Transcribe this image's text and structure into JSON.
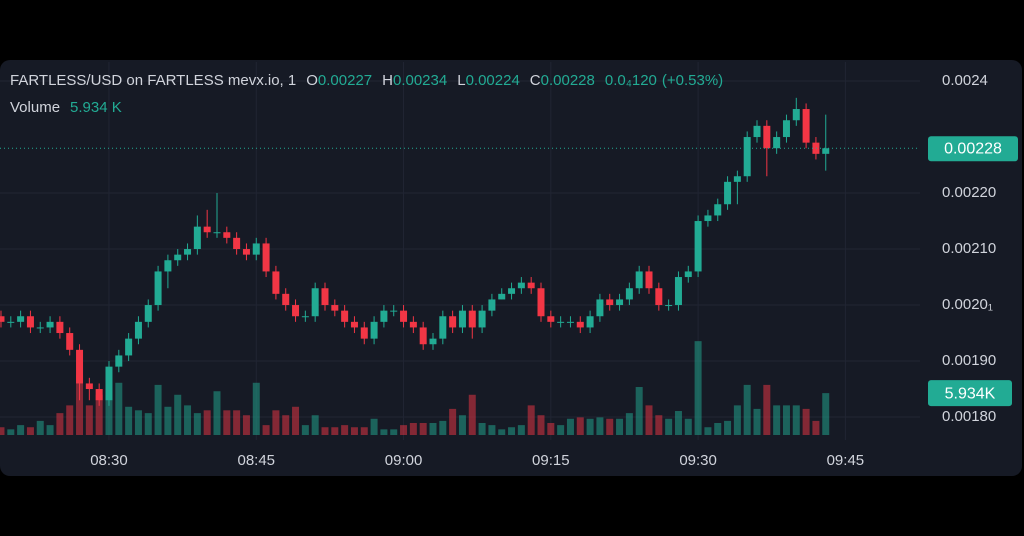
{
  "chart_data": {
    "type": "candlestick",
    "legend": {
      "symbol": "FARTLESS/USD on FARTLESS mevx.io, 1",
      "open_label": "O",
      "high_label": "H",
      "low_label": "L",
      "close_label": "C",
      "change": "0.0₄120",
      "change_pct": "(+0.53%)",
      "volume_label": "Volume",
      "volume_text": "5.934 K",
      "volume_badge": "5.934K"
    },
    "up_color": "#22ab94",
    "down_color": "#f23645",
    "x": [
      0,
      1,
      2,
      3,
      4,
      5,
      6,
      7,
      8,
      9,
      10,
      11,
      12,
      13,
      14,
      15,
      16,
      17,
      18,
      19,
      20,
      21,
      22,
      23,
      24,
      25,
      26,
      27,
      28,
      29,
      30,
      31,
      32,
      33,
      34,
      35,
      36,
      37,
      38,
      39,
      40,
      41,
      42,
      43,
      44,
      45,
      46,
      47,
      48,
      49,
      50,
      51,
      52,
      53,
      54,
      55,
      56,
      57,
      58,
      59,
      60,
      61,
      62,
      63,
      64,
      65,
      66,
      67,
      68,
      69,
      70,
      71,
      72,
      73,
      74,
      75,
      76,
      77,
      78,
      79,
      80,
      81,
      82,
      83,
      84
    ],
    "xlim": [
      -0.1,
      93.6
    ],
    "xticks": [
      {
        "value": 11,
        "label": "08:30"
      },
      {
        "value": 26,
        "label": "08:45"
      },
      {
        "value": 41,
        "label": "09:00"
      },
      {
        "value": 56,
        "label": "09:15"
      },
      {
        "value": 71,
        "label": "09:30"
      },
      {
        "value": 86,
        "label": "09:45"
      }
    ],
    "open": [
      0.00198,
      0.00197,
      0.00197,
      0.00198,
      0.00196,
      0.00196,
      0.00197,
      0.00195,
      0.00192,
      0.00186,
      0.00185,
      0.00183,
      0.00189,
      0.00191,
      0.00194,
      0.00197,
      0.002,
      0.00206,
      0.00208,
      0.00209,
      0.0021,
      0.00214,
      0.00213,
      0.00213,
      0.00212,
      0.0021,
      0.00209,
      0.00211,
      0.00206,
      0.00202,
      0.002,
      0.00198,
      0.00198,
      0.00203,
      0.002,
      0.00199,
      0.00197,
      0.00196,
      0.00194,
      0.00197,
      0.00199,
      0.00199,
      0.00197,
      0.00196,
      0.00193,
      0.00194,
      0.00198,
      0.00196,
      0.00199,
      0.00196,
      0.00199,
      0.00201,
      0.00202,
      0.00203,
      0.00204,
      0.00203,
      0.00198,
      0.00197,
      0.00197,
      0.00197,
      0.00196,
      0.00198,
      0.00201,
      0.002,
      0.00201,
      0.00203,
      0.00206,
      0.00203,
      0.002,
      0.002,
      0.00205,
      0.00206,
      0.00215,
      0.00216,
      0.00218,
      0.00222,
      0.00223,
      0.0023,
      0.00232,
      0.00228,
      0.0023,
      0.00233,
      0.00235,
      0.00229,
      0.00227
    ],
    "high": [
      0.00199,
      0.00198,
      0.00199,
      0.00199,
      0.00197,
      0.00198,
      0.00198,
      0.00196,
      0.00193,
      0.00187,
      0.00186,
      0.0019,
      0.00192,
      0.00195,
      0.00198,
      0.00201,
      0.00207,
      0.00209,
      0.0021,
      0.00211,
      0.00216,
      0.00217,
      0.0022,
      0.00214,
      0.00213,
      0.00211,
      0.00212,
      0.00212,
      0.00207,
      0.00203,
      0.00201,
      0.00199,
      0.00204,
      0.00204,
      0.00201,
      0.002,
      0.00198,
      0.00197,
      0.00198,
      0.002,
      0.002,
      0.002,
      0.00198,
      0.00197,
      0.00195,
      0.00199,
      0.00199,
      0.002,
      0.002,
      0.002,
      0.00202,
      0.00203,
      0.00204,
      0.00205,
      0.00205,
      0.00204,
      0.00199,
      0.00198,
      0.00198,
      0.00198,
      0.00199,
      0.00202,
      0.00202,
      0.00202,
      0.00204,
      0.00207,
      0.00207,
      0.00204,
      0.00201,
      0.00206,
      0.00207,
      0.00216,
      0.00217,
      0.00219,
      0.00223,
      0.00224,
      0.00231,
      0.00233,
      0.00233,
      0.00231,
      0.00234,
      0.00237,
      0.00236,
      0.0023,
      0.00234
    ],
    "low": [
      0.00196,
      0.00196,
      0.00196,
      0.00195,
      0.00195,
      0.00195,
      0.00194,
      0.00191,
      0.00183,
      0.00183,
      0.00182,
      0.00182,
      0.00188,
      0.0019,
      0.00193,
      0.00196,
      0.00199,
      0.00203,
      0.00207,
      0.00208,
      0.00209,
      0.00212,
      0.00212,
      0.00211,
      0.00209,
      0.00208,
      0.00208,
      0.00205,
      0.00201,
      0.00199,
      0.00197,
      0.00197,
      0.00197,
      0.00199,
      0.00198,
      0.00196,
      0.00195,
      0.00193,
      0.00193,
      0.00196,
      0.00198,
      0.00196,
      0.00195,
      0.00192,
      0.00192,
      0.00193,
      0.00195,
      0.00195,
      0.00194,
      0.00195,
      0.00198,
      0.00201,
      0.00201,
      0.00202,
      0.00202,
      0.00197,
      0.00196,
      0.00196,
      0.00196,
      0.00195,
      0.00195,
      0.00197,
      0.00199,
      0.00199,
      0.002,
      0.00202,
      0.00202,
      0.00199,
      0.00199,
      0.00199,
      0.00204,
      0.00205,
      0.00214,
      0.00215,
      0.00217,
      0.00218,
      0.00222,
      0.00229,
      0.00223,
      0.00227,
      0.00229,
      0.00232,
      0.00228,
      0.00226,
      0.00224
    ],
    "close": [
      0.00197,
      0.00197,
      0.00198,
      0.00196,
      0.00196,
      0.00197,
      0.00195,
      0.00192,
      0.00186,
      0.00185,
      0.00183,
      0.00189,
      0.00191,
      0.00194,
      0.00197,
      0.002,
      0.00206,
      0.00208,
      0.00209,
      0.0021,
      0.00214,
      0.00213,
      0.00213,
      0.00212,
      0.0021,
      0.00209,
      0.00211,
      0.00206,
      0.00202,
      0.002,
      0.00198,
      0.00198,
      0.00203,
      0.002,
      0.00199,
      0.00197,
      0.00196,
      0.00194,
      0.00197,
      0.00199,
      0.00199,
      0.00197,
      0.00196,
      0.00193,
      0.00194,
      0.00198,
      0.00196,
      0.00199,
      0.00196,
      0.00199,
      0.00201,
      0.00202,
      0.00203,
      0.00204,
      0.00203,
      0.00198,
      0.00197,
      0.00197,
      0.00197,
      0.00196,
      0.00198,
      0.00201,
      0.002,
      0.00201,
      0.00203,
      0.00206,
      0.00203,
      0.002,
      0.002,
      0.00205,
      0.00206,
      0.00215,
      0.00216,
      0.00218,
      0.00222,
      0.00223,
      0.0023,
      0.00232,
      0.00228,
      0.0023,
      0.00233,
      0.00235,
      0.00229,
      0.00227,
      0.00228
    ],
    "volume": [
      1.1,
      0.8,
      1.4,
      1.1,
      2.0,
      1.4,
      3.1,
      4.2,
      8.5,
      4.2,
      5.7,
      5.7,
      7.4,
      4.0,
      3.5,
      3.1,
      7.1,
      4.0,
      5.7,
      4.2,
      3.1,
      3.5,
      6.2,
      3.5,
      3.5,
      2.8,
      7.4,
      1.4,
      3.5,
      2.8,
      4.0,
      1.4,
      2.8,
      1.1,
      1.1,
      1.4,
      1.1,
      1.1,
      2.3,
      0.8,
      0.8,
      1.4,
      1.7,
      1.7,
      1.7,
      2.0,
      3.7,
      2.8,
      5.7,
      1.7,
      1.4,
      0.8,
      1.1,
      1.4,
      4.2,
      2.8,
      1.7,
      1.4,
      2.3,
      2.5,
      2.3,
      2.5,
      2.3,
      2.3,
      3.1,
      6.8,
      4.2,
      2.8,
      2.3,
      3.4,
      2.3,
      13.3,
      1.1,
      1.7,
      2.0,
      4.2,
      7.1,
      3.7,
      7.1,
      4.2,
      4.2,
      4.2,
      3.7,
      2.0,
      5.934
    ],
    "ylim": [
      0.001759,
      0.002434
    ],
    "yticks": [
      {
        "value": 0.0024,
        "label": "0.0024"
      },
      {
        "value": 0.0022,
        "label": "0.00220"
      },
      {
        "value": 0.0021,
        "label": "0.00210"
      },
      {
        "value": 0.002,
        "label": "0.0020₁"
      },
      {
        "value": 0.0019,
        "label": "0.00190"
      },
      {
        "value": 0.0018,
        "label": "0.00180"
      }
    ],
    "y2lim": [
      0,
      35
    ],
    "grid": true
  }
}
